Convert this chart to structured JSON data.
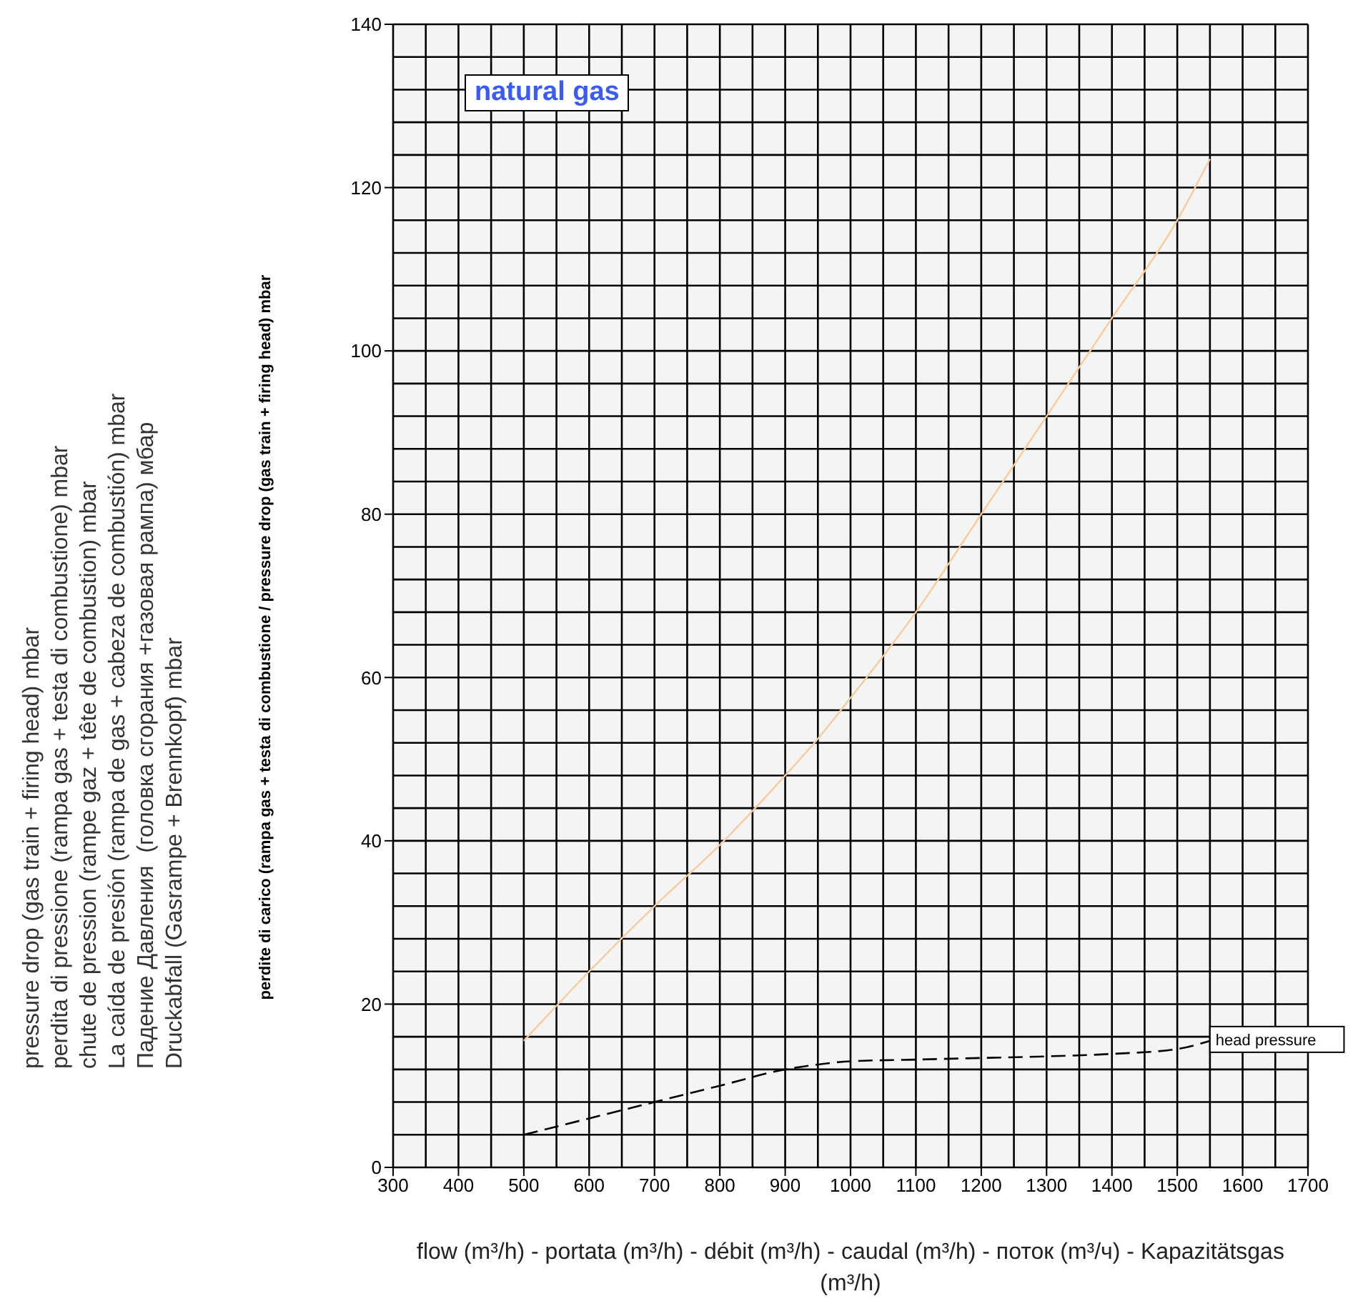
{
  "chart_data": {
    "type": "line",
    "title": "natural gas",
    "xlabel": "flow (m³/h) - portata (m³/h) - débit (m³/h) - caudal (m³/h) - поток (m³/ч) - Kapazitätsgas (m³/h)",
    "ylabel": "perdite di carico (rampa gas + testa di combustione / pressure drop (gas train + firing head) mbar",
    "annotations": [
      "pressure drop (gas train + firing head) mbar\nperdita di pressione (rampa gas + testa di combustione) mbar\nchute de pression (rampe gaz + tête de combustion) mbar\nLa caída de presión (rampa de gas + cabeza de combustión) mbar\nПадение Давления  (головка сгорания +газовая рампа) мбар\nDruckabfall (Gasrampe + Brennkopf) mbar"
    ],
    "x": [
      500,
      600,
      700,
      800,
      900,
      950,
      1000,
      1100,
      1200,
      1300,
      1400,
      1500,
      1550
    ],
    "series": [
      {
        "color": "#f9cb9c",
        "line_style": "solid",
        "values": [
          15.5,
          24,
          32,
          39.5,
          48,
          52.5,
          57.5,
          68,
          80,
          92,
          104,
          116,
          123.5
        ]
      },
      {
        "name": "head pressure",
        "color": "#000000",
        "line_style": "dashed",
        "values": [
          4,
          6,
          8,
          10,
          12,
          12.6,
          13,
          13.2,
          13.4,
          13.6,
          13.9,
          14.5,
          15.5
        ]
      }
    ],
    "xlim": [
      300,
      1700
    ],
    "xticks": [
      300,
      400,
      500,
      600,
      700,
      800,
      900,
      1000,
      1100,
      1200,
      1300,
      1400,
      1500,
      1600,
      1700
    ],
    "ylim": [
      0,
      140
    ],
    "yticks": [
      0,
      20,
      40,
      60,
      80,
      100,
      120,
      140
    ],
    "grid": true,
    "marker": "none"
  }
}
